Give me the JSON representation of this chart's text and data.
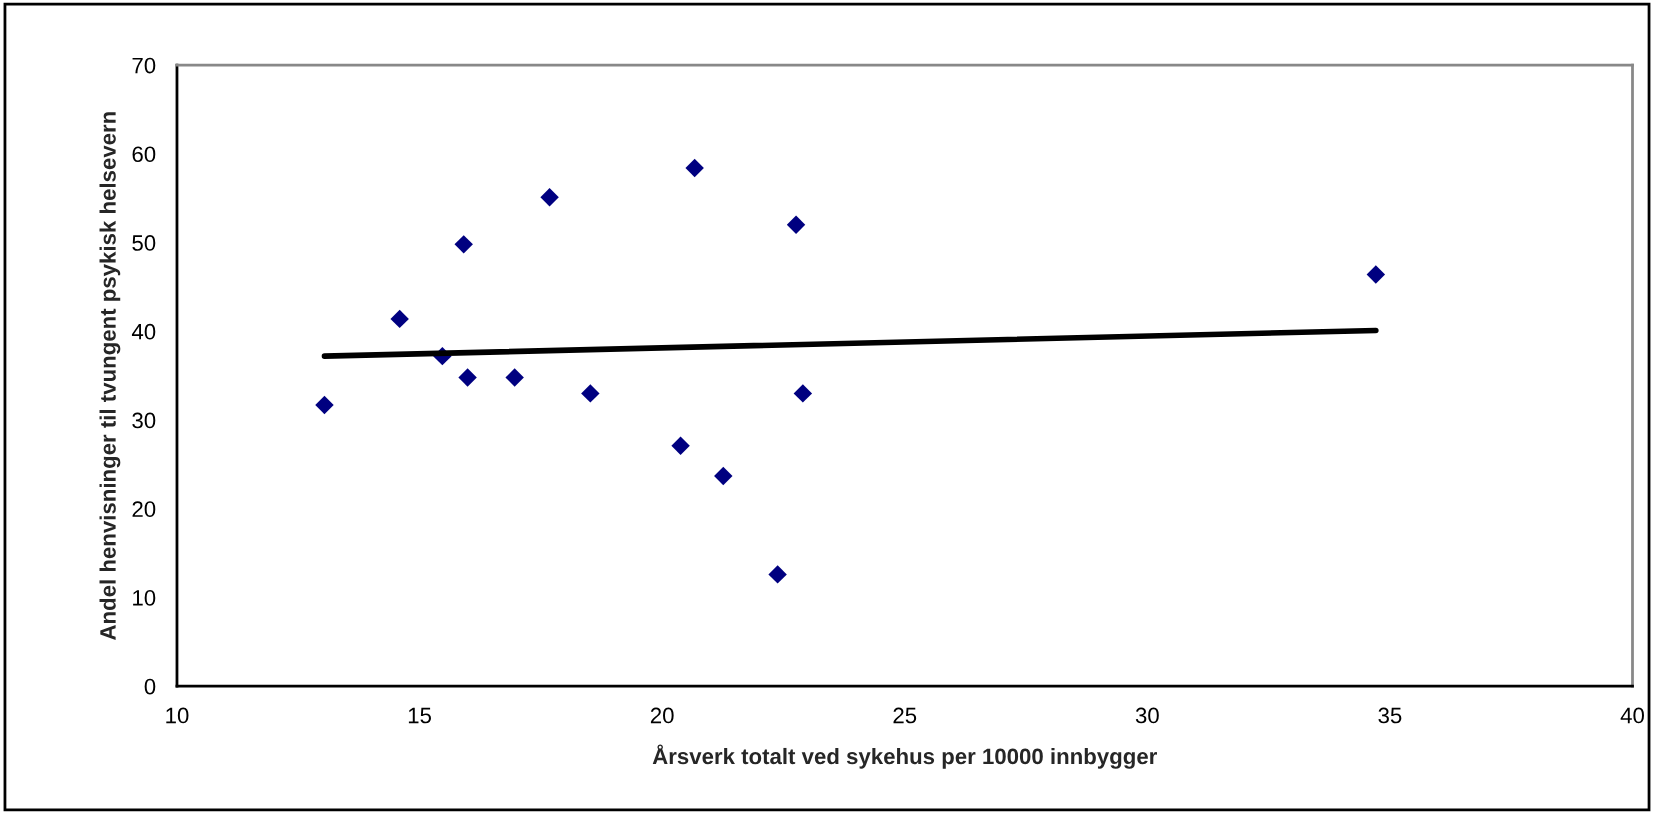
{
  "chart_data": {
    "type": "scatter",
    "xlabel": "Årsverk totalt ved sykehus per 10000 innbygger",
    "ylabel": "Andel henvisninger til tvungent psykisk helsevern",
    "xlim": [
      10,
      40
    ],
    "xticks": [
      10,
      15,
      20,
      25,
      30,
      35,
      40
    ],
    "ylim": [
      0,
      70
    ],
    "yticks": [
      0,
      10,
      20,
      30,
      40,
      50,
      60,
      70
    ],
    "grid": false,
    "legend": false,
    "marker": "diamond",
    "series": [
      {
        "color": "#000080",
        "x": [
          13.04,
          14.59,
          15.47,
          15.91,
          15.99,
          16.96,
          17.68,
          18.52,
          20.38,
          20.67,
          21.26,
          22.38,
          22.76,
          22.9,
          34.71
        ],
        "values": [
          31.7,
          41.4,
          37.2,
          49.8,
          34.8,
          34.8,
          55.1,
          33.0,
          27.1,
          58.4,
          23.7,
          12.6,
          52.0,
          33.0,
          46.4
        ]
      },
      {
        "type": "line",
        "color": "#000000",
        "marker": "none",
        "line_style": "solid",
        "x": [
          13.04,
          34.71
        ],
        "values": [
          37.2,
          40.1
        ]
      }
    ]
  }
}
